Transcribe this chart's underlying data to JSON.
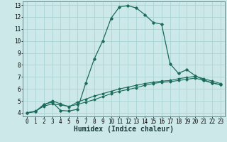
{
  "xlabel": "Humidex (Indice chaleur)",
  "background_color": "#cce8e8",
  "grid_color": "#aad4d4",
  "line_color": "#1a6b5a",
  "xlim": [
    -0.5,
    23.5
  ],
  "ylim": [
    3.7,
    13.3
  ],
  "xticks": [
    0,
    1,
    2,
    3,
    4,
    5,
    6,
    7,
    8,
    9,
    10,
    11,
    12,
    13,
    14,
    15,
    16,
    17,
    18,
    19,
    20,
    21,
    22,
    23
  ],
  "yticks": [
    4,
    5,
    6,
    7,
    8,
    9,
    10,
    11,
    12,
    13
  ],
  "line1_x": [
    0,
    1,
    2,
    3,
    4,
    5,
    6,
    7,
    8,
    9,
    10,
    11,
    12,
    13,
    14,
    15,
    16,
    17,
    18,
    19,
    20,
    21,
    22,
    23
  ],
  "line1_y": [
    4.0,
    4.1,
    4.7,
    4.9,
    4.2,
    4.15,
    4.3,
    6.5,
    8.5,
    10.0,
    11.9,
    12.85,
    12.95,
    12.75,
    12.2,
    11.55,
    11.4,
    8.1,
    7.3,
    7.6,
    7.1,
    6.75,
    6.5,
    6.35
  ],
  "line2_x": [
    0,
    1,
    2,
    3,
    4,
    5,
    6,
    7,
    8,
    9,
    10,
    11,
    12,
    13,
    14,
    15,
    16,
    17,
    18,
    19,
    20,
    21,
    22,
    23
  ],
  "line2_y": [
    4.0,
    4.1,
    4.65,
    5.0,
    4.75,
    4.5,
    4.9,
    5.15,
    5.4,
    5.6,
    5.8,
    6.0,
    6.15,
    6.3,
    6.45,
    6.55,
    6.65,
    6.7,
    6.85,
    6.95,
    7.05,
    6.85,
    6.65,
    6.45
  ],
  "line3_x": [
    0,
    1,
    2,
    3,
    4,
    5,
    6,
    7,
    8,
    9,
    10,
    11,
    12,
    13,
    14,
    15,
    16,
    17,
    18,
    19,
    20,
    21,
    22,
    23
  ],
  "line3_y": [
    4.0,
    4.15,
    4.55,
    4.75,
    4.65,
    4.55,
    4.7,
    4.9,
    5.1,
    5.35,
    5.6,
    5.8,
    5.95,
    6.1,
    6.3,
    6.45,
    6.55,
    6.6,
    6.7,
    6.8,
    6.9,
    6.7,
    6.5,
    6.35
  ],
  "xlabel_fontsize": 7,
  "tick_fontsize": 5.5
}
